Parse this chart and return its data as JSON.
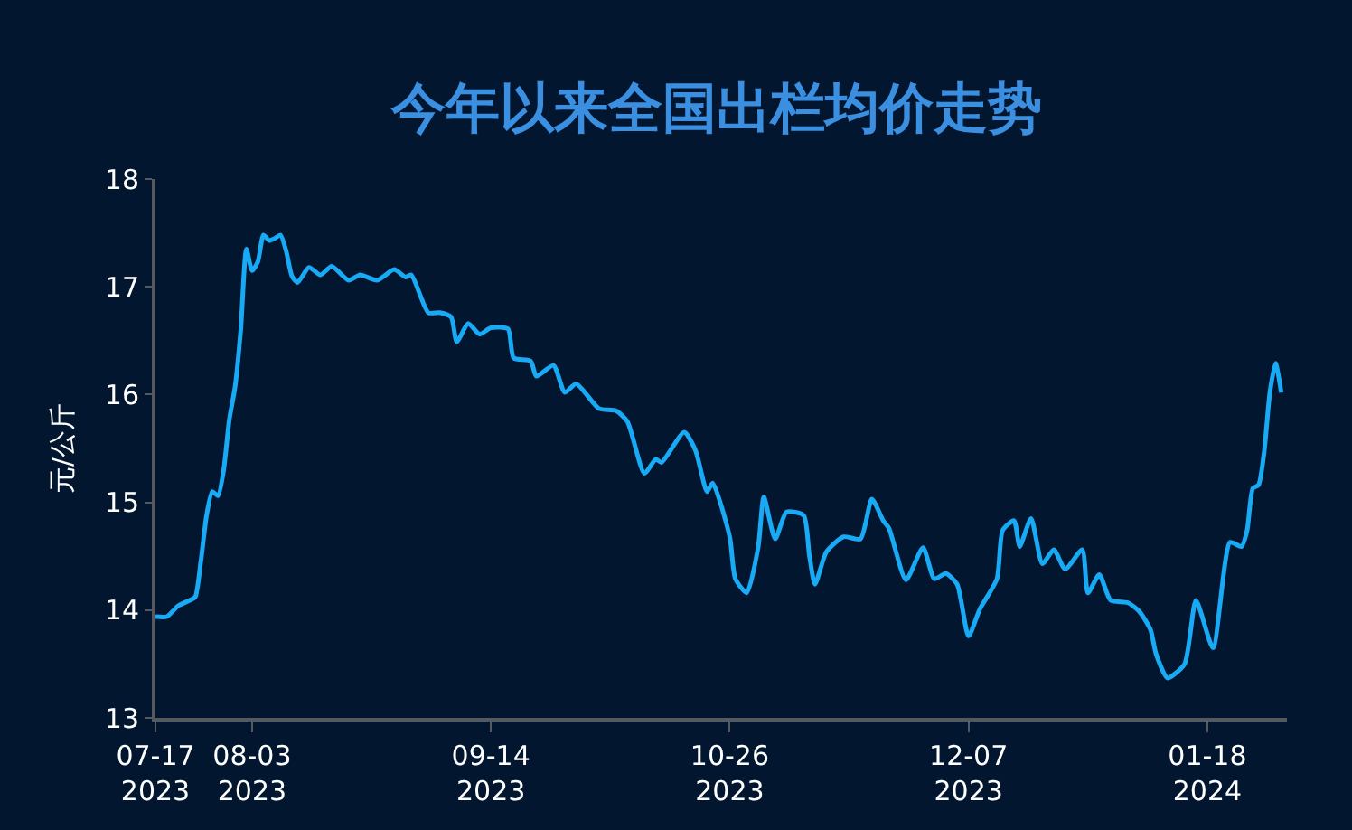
{
  "chart_data": {
    "type": "line",
    "title": "今年以来全国出栏均价走势",
    "ylabel": "元/公斤",
    "x": [
      "2023-07-17",
      "2023-07-19",
      "2023-07-21",
      "2023-07-23",
      "2023-07-24",
      "2023-07-25",
      "2023-07-26",
      "2023-07-27",
      "2023-07-28",
      "2023-07-29",
      "2023-07-30",
      "2023-07-31",
      "2023-08-01",
      "2023-08-02",
      "2023-08-03",
      "2023-08-04",
      "2023-08-05",
      "2023-08-06",
      "2023-08-07",
      "2023-08-08",
      "2023-08-09",
      "2023-08-10",
      "2023-08-11",
      "2023-08-13",
      "2023-08-15",
      "2023-08-17",
      "2023-08-20",
      "2023-08-22",
      "2023-08-25",
      "2023-08-28",
      "2023-08-30",
      "2023-08-31",
      "2023-09-03",
      "2023-09-05",
      "2023-09-07",
      "2023-09-08",
      "2023-09-10",
      "2023-09-12",
      "2023-09-14",
      "2023-09-17",
      "2023-09-18",
      "2023-09-21",
      "2023-09-22",
      "2023-09-25",
      "2023-09-27",
      "2023-09-29",
      "2023-10-03",
      "2023-10-06",
      "2023-10-08",
      "2023-10-11",
      "2023-10-13",
      "2023-10-14",
      "2023-10-18",
      "2023-10-20",
      "2023-10-22",
      "2023-10-23",
      "2023-10-26",
      "2023-10-27",
      "2023-10-29",
      "2023-10-31",
      "2023-11-01",
      "2023-11-03",
      "2023-11-05",
      "2023-11-08",
      "2023-11-09",
      "2023-11-10",
      "2023-11-12",
      "2023-11-15",
      "2023-11-18",
      "2023-11-20",
      "2023-11-22",
      "2023-11-23",
      "2023-11-26",
      "2023-11-29",
      "2023-12-01",
      "2023-12-03",
      "2023-12-05",
      "2023-12-07",
      "2023-12-09",
      "2023-12-12",
      "2023-12-13",
      "2023-12-15",
      "2023-12-16",
      "2023-12-18",
      "2023-12-20",
      "2023-12-22",
      "2023-12-24",
      "2023-12-27",
      "2023-12-28",
      "2023-12-30",
      "2024-01-01",
      "2024-01-04",
      "2024-01-06",
      "2024-01-08",
      "2024-01-09",
      "2024-01-11",
      "2024-01-14",
      "2024-01-16",
      "2024-01-19",
      "2024-01-22",
      "2024-01-24",
      "2024-01-25",
      "2024-01-26",
      "2024-01-27",
      "2024-01-28",
      "2024-01-29",
      "2024-01-30",
      "2024-01-31"
    ],
    "series": [
      {
        "color": "#18aaf5",
        "values": [
          13.94,
          13.94,
          14.04,
          14.09,
          14.12,
          14.46,
          14.88,
          15.1,
          15.06,
          15.3,
          15.77,
          16.07,
          16.6,
          17.35,
          17.15,
          17.23,
          17.48,
          17.43,
          17.45,
          17.48,
          17.33,
          17.1,
          17.04,
          17.18,
          17.11,
          17.19,
          17.06,
          17.11,
          17.06,
          17.16,
          17.09,
          17.11,
          16.76,
          16.76,
          16.72,
          16.49,
          16.66,
          16.56,
          16.62,
          16.61,
          16.34,
          16.31,
          16.17,
          16.27,
          16.02,
          16.1,
          15.87,
          15.85,
          15.75,
          15.27,
          15.4,
          15.37,
          15.65,
          15.48,
          15.1,
          15.18,
          14.68,
          14.29,
          14.16,
          14.58,
          15.05,
          14.66,
          14.91,
          14.88,
          14.51,
          14.24,
          14.54,
          14.68,
          14.66,
          15.03,
          14.83,
          14.76,
          14.28,
          14.58,
          14.29,
          14.34,
          14.24,
          13.76,
          14.01,
          14.29,
          14.74,
          14.83,
          14.59,
          14.85,
          14.43,
          14.56,
          14.38,
          14.56,
          14.16,
          14.33,
          14.09,
          14.07,
          13.99,
          13.82,
          13.59,
          13.37,
          13.5,
          14.09,
          13.65,
          14.63,
          14.59,
          14.74,
          15.13,
          15.16,
          15.47,
          16.02,
          16.29,
          16.02
        ]
      }
    ],
    "xlim": [
      "2023-07-17",
      "2024-02-01"
    ],
    "xticks": [
      {
        "value": "2023-07-17",
        "label": "07-17\n2023"
      },
      {
        "value": "2023-08-03",
        "label": "08-03\n2023"
      },
      {
        "value": "2023-09-14",
        "label": "09-14\n2023"
      },
      {
        "value": "2023-10-26",
        "label": "10-26\n2023"
      },
      {
        "value": "2023-12-07",
        "label": "12-07\n2023"
      },
      {
        "value": "2024-01-18",
        "label": "01-18\n2024"
      }
    ],
    "ylim": [
      13,
      18
    ],
    "yticks": [
      13,
      14,
      15,
      16,
      17,
      18
    ],
    "grid": false,
    "marker": "none",
    "line_style": "solid"
  }
}
